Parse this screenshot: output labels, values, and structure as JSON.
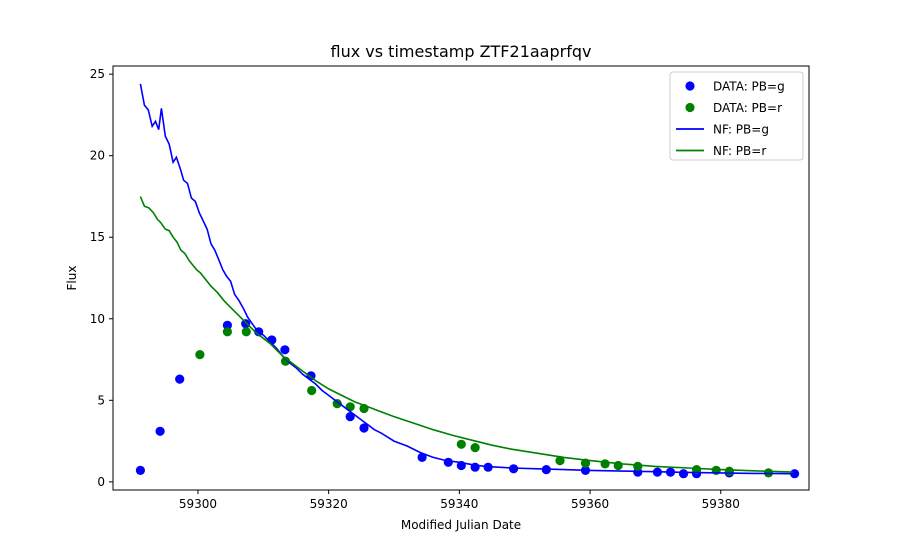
{
  "chart_data": {
    "type": "scatter",
    "title": "flux vs timestamp ZTF21aaprfqv",
    "xlabel": "Modified Julian Date",
    "ylabel": "Flux",
    "xlim": [
      59287.0,
      59393.5
    ],
    "ylim": [
      -0.5,
      25.5
    ],
    "xticks": [
      59300,
      59320,
      59340,
      59360,
      59380
    ],
    "yticks": [
      0,
      5,
      10,
      15,
      20,
      25
    ],
    "grid": false,
    "legend_position": "top-right",
    "series": [
      {
        "name": "DATA: PB=g",
        "kind": "scatter",
        "color": "#0000ff",
        "points": [
          [
            59291.2,
            0.7
          ],
          [
            59294.2,
            3.1
          ],
          [
            59297.2,
            6.3
          ],
          [
            59304.5,
            9.6
          ],
          [
            59307.3,
            9.7
          ],
          [
            59309.3,
            9.2
          ],
          [
            59311.3,
            8.7
          ],
          [
            59313.3,
            8.1
          ],
          [
            59317.3,
            6.5
          ],
          [
            59323.3,
            4.0
          ],
          [
            59325.4,
            3.3
          ],
          [
            59334.3,
            1.5
          ],
          [
            59338.3,
            1.2
          ],
          [
            59340.3,
            1.0
          ],
          [
            59342.4,
            0.9
          ],
          [
            59344.4,
            0.9
          ],
          [
            59348.3,
            0.8
          ],
          [
            59353.3,
            0.75
          ],
          [
            59359.3,
            0.7
          ],
          [
            59367.3,
            0.6
          ],
          [
            59370.3,
            0.6
          ],
          [
            59372.3,
            0.6
          ],
          [
            59374.3,
            0.5
          ],
          [
            59376.3,
            0.5
          ],
          [
            59381.3,
            0.55
          ],
          [
            59391.3,
            0.5
          ]
        ]
      },
      {
        "name": "DATA: PB=r",
        "kind": "scatter",
        "color": "#008000",
        "points": [
          [
            59300.3,
            7.8
          ],
          [
            59304.5,
            9.2
          ],
          [
            59307.4,
            9.2
          ],
          [
            59313.4,
            7.4
          ],
          [
            59317.4,
            5.6
          ],
          [
            59321.3,
            4.8
          ],
          [
            59323.3,
            4.6
          ],
          [
            59325.4,
            4.5
          ],
          [
            59340.3,
            2.3
          ],
          [
            59342.4,
            2.1
          ],
          [
            59355.4,
            1.3
          ],
          [
            59359.3,
            1.15
          ],
          [
            59362.3,
            1.1
          ],
          [
            59364.3,
            1.0
          ],
          [
            59367.3,
            0.95
          ],
          [
            59376.3,
            0.75
          ],
          [
            59379.3,
            0.7
          ],
          [
            59381.3,
            0.65
          ],
          [
            59387.3,
            0.55
          ]
        ]
      },
      {
        "name": "NF: PB=g",
        "kind": "line",
        "color": "#0000ff",
        "points": [
          [
            59291.2,
            24.4
          ],
          [
            59291.8,
            23.1
          ],
          [
            59292.4,
            22.8
          ],
          [
            59293.0,
            21.8
          ],
          [
            59293.5,
            22.1
          ],
          [
            59294.0,
            21.6
          ],
          [
            59294.4,
            22.9
          ],
          [
            59295.0,
            21.2
          ],
          [
            59295.6,
            20.7
          ],
          [
            59296.2,
            19.6
          ],
          [
            59296.7,
            19.9
          ],
          [
            59297.3,
            19.2
          ],
          [
            59297.8,
            18.5
          ],
          [
            59298.4,
            18.3
          ],
          [
            59299.0,
            17.4
          ],
          [
            59299.6,
            17.2
          ],
          [
            59300.2,
            16.5
          ],
          [
            59300.8,
            16.0
          ],
          [
            59301.4,
            15.5
          ],
          [
            59302.0,
            14.6
          ],
          [
            59302.6,
            14.2
          ],
          [
            59303.2,
            13.6
          ],
          [
            59303.8,
            13.0
          ],
          [
            59304.4,
            12.6
          ],
          [
            59305.0,
            12.3
          ],
          [
            59305.6,
            11.5
          ],
          [
            59306.3,
            11.1
          ],
          [
            59307.0,
            10.6
          ],
          [
            59307.6,
            10.1
          ],
          [
            59308.3,
            9.7
          ],
          [
            59309.0,
            9.3
          ],
          [
            59310.0,
            9.0
          ],
          [
            59311.0,
            8.6
          ],
          [
            59312.0,
            8.2
          ],
          [
            59313.0,
            7.7
          ],
          [
            59314.0,
            7.3
          ],
          [
            59315.0,
            7.0
          ],
          [
            59316.0,
            6.6
          ],
          [
            59317.0,
            6.3
          ],
          [
            59318.0,
            6.0
          ],
          [
            59319.0,
            5.6
          ],
          [
            59320.0,
            5.3
          ],
          [
            59321.0,
            5.0
          ],
          [
            59322.0,
            4.7
          ],
          [
            59323.0,
            4.4
          ],
          [
            59324.0,
            4.1
          ],
          [
            59325.0,
            3.8
          ],
          [
            59326.0,
            3.5
          ],
          [
            59327.0,
            3.2
          ],
          [
            59328.0,
            3.0
          ],
          [
            59330.0,
            2.5
          ],
          [
            59332.0,
            2.2
          ],
          [
            59334.0,
            1.8
          ],
          [
            59336.0,
            1.5
          ],
          [
            59338.0,
            1.3
          ],
          [
            59340.0,
            1.2
          ],
          [
            59342.0,
            1.05
          ],
          [
            59344.0,
            0.95
          ],
          [
            59348.0,
            0.85
          ],
          [
            59352.0,
            0.8
          ],
          [
            59356.0,
            0.75
          ],
          [
            59360.0,
            0.7
          ],
          [
            59365.0,
            0.66
          ],
          [
            59370.0,
            0.62
          ],
          [
            59375.0,
            0.58
          ],
          [
            59380.0,
            0.55
          ],
          [
            59385.0,
            0.52
          ],
          [
            59391.0,
            0.5
          ]
        ]
      },
      {
        "name": "NF: PB=r",
        "kind": "line",
        "color": "#008000",
        "points": [
          [
            59291.2,
            17.5
          ],
          [
            59291.8,
            16.9
          ],
          [
            59292.5,
            16.8
          ],
          [
            59293.2,
            16.5
          ],
          [
            59293.8,
            16.1
          ],
          [
            59294.3,
            15.9
          ],
          [
            59295.0,
            15.5
          ],
          [
            59295.6,
            15.4
          ],
          [
            59296.2,
            15.0
          ],
          [
            59296.8,
            14.7
          ],
          [
            59297.4,
            14.2
          ],
          [
            59298.0,
            14.0
          ],
          [
            59298.6,
            13.6
          ],
          [
            59299.2,
            13.3
          ],
          [
            59299.8,
            13.0
          ],
          [
            59300.4,
            12.8
          ],
          [
            59301.0,
            12.5
          ],
          [
            59302.0,
            12.0
          ],
          [
            59303.0,
            11.6
          ],
          [
            59304.0,
            11.1
          ],
          [
            59305.0,
            10.7
          ],
          [
            59306.0,
            10.3
          ],
          [
            59307.0,
            9.9
          ],
          [
            59308.0,
            9.5
          ],
          [
            59309.0,
            9.1
          ],
          [
            59310.0,
            8.8
          ],
          [
            59311.0,
            8.5
          ],
          [
            59312.0,
            8.1
          ],
          [
            59313.0,
            7.7
          ],
          [
            59314.0,
            7.4
          ],
          [
            59315.0,
            7.1
          ],
          [
            59316.0,
            6.8
          ],
          [
            59317.0,
            6.5
          ],
          [
            59318.0,
            6.2
          ],
          [
            59320.0,
            5.7
          ],
          [
            59322.0,
            5.3
          ],
          [
            59324.0,
            4.9
          ],
          [
            59326.0,
            4.6
          ],
          [
            59328.0,
            4.3
          ],
          [
            59330.0,
            4.0
          ],
          [
            59333.0,
            3.6
          ],
          [
            59336.0,
            3.2
          ],
          [
            59339.0,
            2.85
          ],
          [
            59342.0,
            2.55
          ],
          [
            59345.0,
            2.25
          ],
          [
            59348.0,
            2.0
          ],
          [
            59352.0,
            1.75
          ],
          [
            59356.0,
            1.5
          ],
          [
            59360.0,
            1.3
          ],
          [
            59365.0,
            1.1
          ],
          [
            59370.0,
            0.95
          ],
          [
            59375.0,
            0.85
          ],
          [
            59380.0,
            0.75
          ],
          [
            59385.0,
            0.68
          ],
          [
            59391.0,
            0.6
          ]
        ]
      }
    ]
  }
}
